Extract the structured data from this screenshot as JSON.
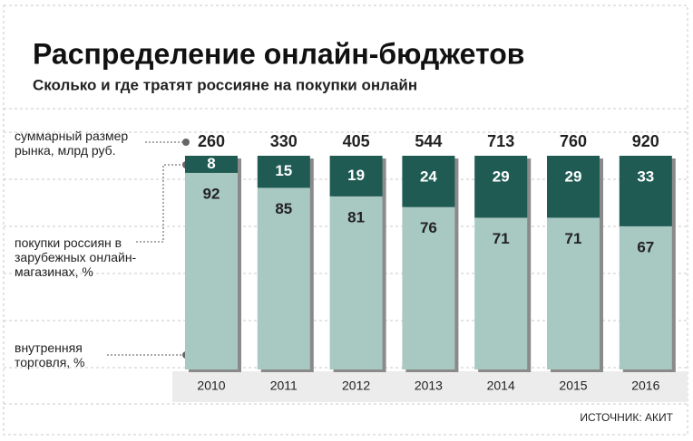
{
  "chart_data": {
    "type": "stacked_bar",
    "title": "Распределение онлайн-бюджетов",
    "subtitle": "Сколько и где тратят россияне на покупки онлайн",
    "categories": [
      "2010",
      "2011",
      "2012",
      "2013",
      "2014",
      "2015",
      "2016"
    ],
    "series": [
      {
        "name": "внутренняя торговля, %",
        "color": "#a8c8c2",
        "values": [
          92,
          85,
          81,
          76,
          71,
          71,
          67
        ]
      },
      {
        "name": "покупки россиян в зарубежных онлайн-магазинах, %",
        "color": "#1f5b53",
        "values": [
          8,
          15,
          19,
          24,
          29,
          29,
          33
        ]
      }
    ],
    "totals": {
      "name": "суммарный размер рынка, млрд руб.",
      "values": [
        260,
        330,
        405,
        544,
        713,
        760,
        920
      ]
    },
    "ylim": [
      0,
      100
    ],
    "source": "ИСТОЧНИК: АКИТ"
  }
}
